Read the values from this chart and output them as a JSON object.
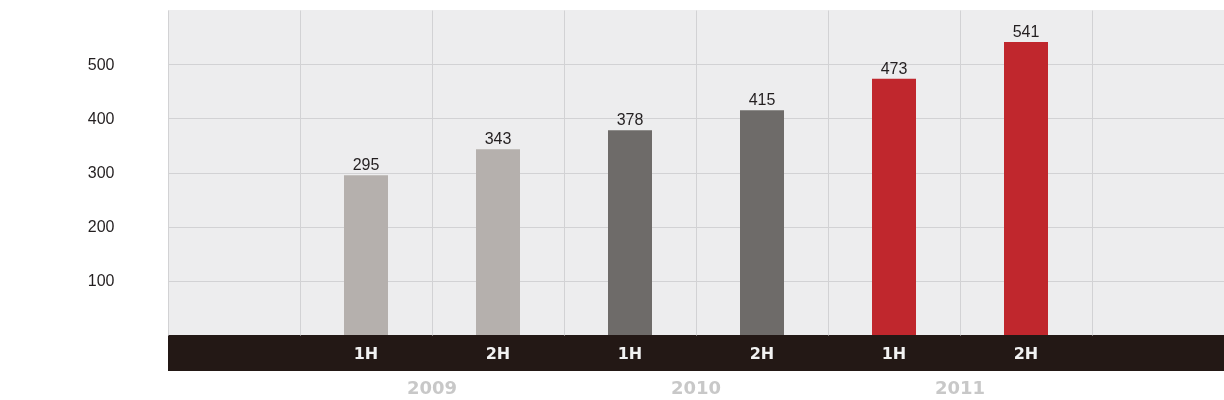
{
  "chart_data": {
    "type": "bar",
    "categories": [
      null,
      "1H",
      "2H",
      "1H",
      "2H",
      "1H",
      "2H",
      null
    ],
    "values": [
      null,
      295,
      343,
      378,
      415,
      473,
      541,
      null
    ],
    "colors": [
      "#b5b0ad",
      "#b5b0ad",
      "#b5b0ad",
      "#6e6b69",
      "#6e6b69",
      "#c0272d",
      "#c0272d",
      "#c0272d"
    ],
    "ylim": [
      0,
      600
    ],
    "yticks": [
      100,
      200,
      300,
      400,
      500
    ],
    "grid": true,
    "data_labels": true,
    "annotations": [
      "2009",
      "2010",
      "2011"
    ]
  }
}
